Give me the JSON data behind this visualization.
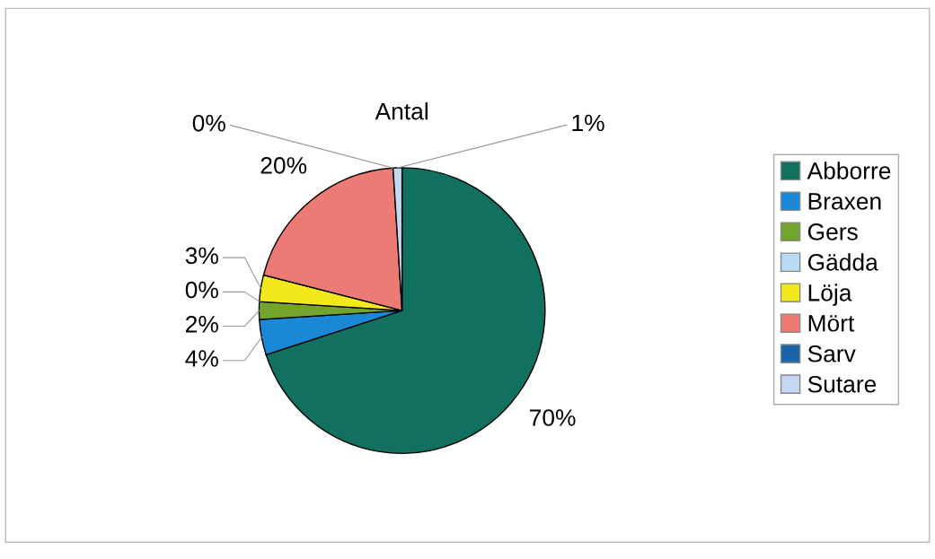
{
  "chart_data": {
    "type": "pie",
    "title": "Antal",
    "categories": [
      "Abborre",
      "Braxen",
      "Gers",
      "Gädda",
      "Löja",
      "Mört",
      "Sarv",
      "Sutare"
    ],
    "values": [
      70,
      4,
      2,
      0,
      3,
      20,
      0,
      1
    ],
    "colors": [
      "#11705f",
      "#1a88d6",
      "#72a42e",
      "#b8dcf4",
      "#f2e81c",
      "#ec7b76",
      "#1c62a8",
      "#c4d8f0"
    ],
    "value_labels": [
      "70%",
      "4%",
      "2%",
      "0%",
      "3%",
      "20%",
      "0%",
      "1%"
    ],
    "legend": "right"
  }
}
